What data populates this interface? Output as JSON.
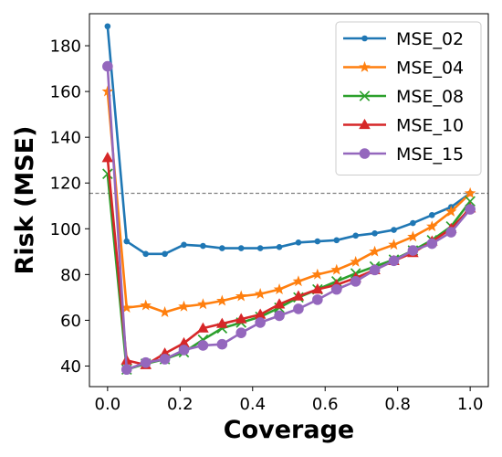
{
  "chart_data": {
    "type": "line",
    "title": "",
    "xlabel": "Coverage",
    "ylabel": "Risk (MSE)",
    "xlim": [
      -0.05,
      1.05
    ],
    "ylim": [
      31,
      194
    ],
    "xticks": [
      0.0,
      0.2,
      0.4,
      0.6,
      0.8,
      1.0
    ],
    "xtick_labels": [
      "0.0",
      "0.2",
      "0.4",
      "0.6",
      "0.8",
      "1.0"
    ],
    "yticks": [
      40,
      60,
      80,
      100,
      120,
      140,
      160,
      180
    ],
    "ytick_labels": [
      "40",
      "60",
      "80",
      "100",
      "120",
      "140",
      "160",
      "180"
    ],
    "grid": false,
    "legend_position": "top-right",
    "reference_line": {
      "y": 115.5,
      "style": "dashed",
      "color": "#808080"
    },
    "x": [
      0.0,
      0.0526,
      0.1053,
      0.1579,
      0.2105,
      0.2632,
      0.3158,
      0.3684,
      0.4211,
      0.4737,
      0.5263,
      0.5789,
      0.6316,
      0.6842,
      0.7368,
      0.7895,
      0.8421,
      0.8947,
      0.9474,
      1.0
    ],
    "series": [
      {
        "name": "MSE_02",
        "color": "#1f77b4",
        "marker": "dot",
        "values": [
          188.5,
          94.5,
          89.0,
          89.0,
          93.0,
          92.5,
          91.5,
          91.5,
          91.5,
          92.0,
          94.0,
          94.5,
          95.0,
          97.0,
          98.0,
          99.5,
          102.5,
          106.0,
          109.5,
          115.5
        ]
      },
      {
        "name": "MSE_04",
        "color": "#ff7f0e",
        "marker": "star",
        "values": [
          160.0,
          65.5,
          66.5,
          63.5,
          66.0,
          67.0,
          68.5,
          70.5,
          71.5,
          73.5,
          77.0,
          80.0,
          82.0,
          85.5,
          90.0,
          93.0,
          96.5,
          101.0,
          107.5,
          115.5
        ]
      },
      {
        "name": "MSE_08",
        "color": "#2ca02c",
        "marker": "x",
        "values": [
          124.0,
          38.5,
          41.0,
          43.0,
          46.0,
          51.5,
          56.5,
          59.0,
          61.5,
          65.5,
          70.0,
          73.5,
          77.0,
          80.5,
          83.5,
          86.5,
          90.5,
          95.0,
          101.0,
          112.0
        ]
      },
      {
        "name": "MSE_10",
        "color": "#d62728",
        "marker": "triangle",
        "values": [
          131.0,
          42.5,
          40.5,
          45.5,
          50.0,
          56.5,
          58.5,
          60.5,
          62.5,
          67.0,
          70.5,
          73.5,
          75.5,
          78.5,
          82.0,
          86.0,
          89.5,
          94.5,
          100.0,
          109.0
        ]
      },
      {
        "name": "MSE_15",
        "color": "#9467bd",
        "marker": "circle",
        "values": [
          171.0,
          38.5,
          41.5,
          43.0,
          47.0,
          49.0,
          49.5,
          54.5,
          59.0,
          62.0,
          65.0,
          69.0,
          73.5,
          77.0,
          82.0,
          86.0,
          90.5,
          93.5,
          98.5,
          108.5
        ]
      }
    ]
  }
}
